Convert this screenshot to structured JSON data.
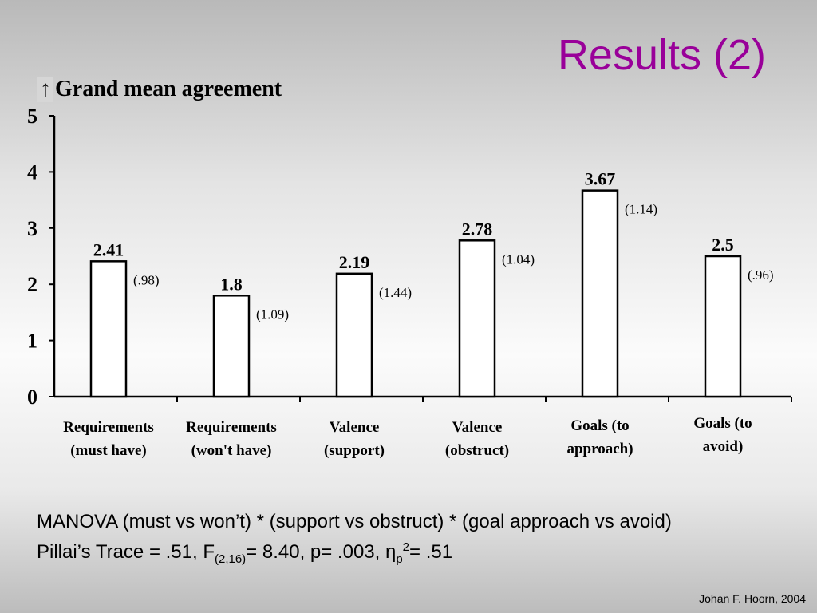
{
  "slide": {
    "title": "Results (2)",
    "note_line1": "MANOVA (must vs won’t) * (support vs obstruct) * (goal approach vs avoid)",
    "note_line2_prefix": "Pillai’s Trace = .51, F",
    "note_line2_sub": "(2,16)",
    "note_line2_mid": "= 8.40, p= .003, η",
    "note_line2_sub2": "p",
    "note_line2_sup": "2",
    "note_line2_end": "= .51",
    "credit": "Johan F. Hoorn, 2004"
  },
  "chart_data": {
    "type": "bar",
    "title_arrow": "↑",
    "title": "Grand mean agreement",
    "categories": [
      [
        "Requirements",
        "(must have)"
      ],
      [
        "Requirements",
        "(won't have)"
      ],
      [
        "Valence",
        "(support)"
      ],
      [
        "Valence",
        "(obstruct)"
      ],
      [
        "Goals (to",
        "approach)"
      ],
      [
        "Goals (to",
        "avoid)"
      ]
    ],
    "values": [
      2.41,
      1.8,
      2.19,
      2.78,
      3.67,
      2.5
    ],
    "value_labels": [
      "2.41",
      "1.8",
      "2.19",
      "2.78",
      "3.67",
      "2.5"
    ],
    "sd_labels": [
      "(.98)",
      "(1.09)",
      "(1.44)",
      "(1.04)",
      "(1.14)",
      "(.96)"
    ],
    "ylim": [
      0,
      5
    ],
    "yticks": [
      0,
      1,
      2,
      3,
      4,
      5
    ],
    "grid": false,
    "bar_fill": "#ffffff",
    "bar_stroke": "#000000",
    "title_color": "#990099"
  }
}
